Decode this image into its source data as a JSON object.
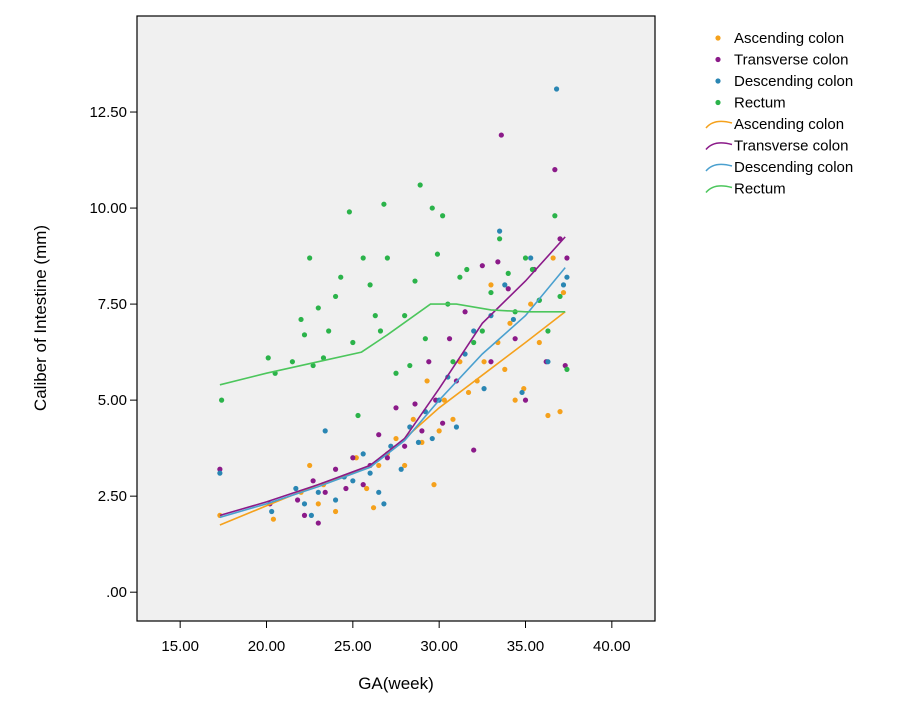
{
  "chart_data": {
    "type": "scatter",
    "xlabel": "GA(week)",
    "ylabel": "Caliber of Intestine (mm)",
    "xlim": [
      12.5,
      42.5
    ],
    "ylim": [
      -0.75,
      15.0
    ],
    "xticks": [
      "15.00",
      "20.00",
      "25.00",
      "30.00",
      "35.00",
      "40.00"
    ],
    "xtick_values": [
      15,
      20,
      25,
      30,
      35,
      40
    ],
    "yticks": [
      ".00",
      "2.50",
      "5.00",
      "7.50",
      "10.00",
      "12.50"
    ],
    "ytick_values": [
      0,
      2.5,
      5,
      7.5,
      10,
      12.5
    ],
    "grid": false,
    "legend_position": "right",
    "plot_background": "#f0f0f0",
    "scatter_series": [
      {
        "name": "Ascending colon",
        "color": "#f5a11c",
        "points": [
          [
            17.3,
            2.0
          ],
          [
            20.4,
            1.9
          ],
          [
            22.0,
            2.6
          ],
          [
            22.5,
            3.3
          ],
          [
            23.0,
            2.3
          ],
          [
            23.3,
            2.8
          ],
          [
            24.0,
            2.1
          ],
          [
            24.5,
            3.0
          ],
          [
            25.2,
            3.5
          ],
          [
            25.8,
            2.7
          ],
          [
            26.2,
            2.2
          ],
          [
            26.5,
            3.3
          ],
          [
            27.0,
            3.6
          ],
          [
            27.5,
            4.0
          ],
          [
            28.0,
            3.3
          ],
          [
            28.5,
            4.5
          ],
          [
            29.0,
            3.9
          ],
          [
            29.3,
            5.5
          ],
          [
            29.7,
            2.8
          ],
          [
            30.0,
            4.2
          ],
          [
            30.3,
            5.0
          ],
          [
            30.8,
            4.5
          ],
          [
            31.2,
            6.0
          ],
          [
            31.7,
            5.2
          ],
          [
            32.2,
            5.5
          ],
          [
            32.6,
            6.0
          ],
          [
            33.0,
            8.0
          ],
          [
            33.4,
            6.5
          ],
          [
            33.8,
            5.8
          ],
          [
            34.1,
            7.0
          ],
          [
            34.4,
            5.0
          ],
          [
            34.9,
            5.3
          ],
          [
            35.3,
            7.5
          ],
          [
            35.8,
            6.5
          ],
          [
            36.3,
            4.6
          ],
          [
            36.6,
            8.7
          ],
          [
            37.0,
            4.7
          ],
          [
            37.2,
            7.8
          ]
        ]
      },
      {
        "name": "Transverse colon",
        "color": "#8b1a89",
        "points": [
          [
            17.3,
            3.2
          ],
          [
            20.2,
            2.3
          ],
          [
            21.8,
            2.4
          ],
          [
            22.2,
            2.0
          ],
          [
            22.7,
            2.9
          ],
          [
            23.0,
            1.8
          ],
          [
            23.4,
            2.6
          ],
          [
            24.0,
            3.2
          ],
          [
            24.6,
            2.7
          ],
          [
            25.0,
            3.5
          ],
          [
            25.6,
            2.8
          ],
          [
            26.0,
            3.3
          ],
          [
            26.5,
            4.1
          ],
          [
            27.0,
            3.5
          ],
          [
            27.5,
            4.8
          ],
          [
            28.0,
            3.8
          ],
          [
            28.6,
            4.9
          ],
          [
            29.0,
            4.2
          ],
          [
            29.4,
            6.0
          ],
          [
            29.8,
            5.0
          ],
          [
            30.2,
            4.4
          ],
          [
            30.6,
            6.6
          ],
          [
            31.0,
            5.5
          ],
          [
            31.5,
            7.3
          ],
          [
            32.0,
            3.7
          ],
          [
            32.5,
            8.5
          ],
          [
            33.0,
            6.0
          ],
          [
            33.4,
            8.6
          ],
          [
            33.6,
            11.9
          ],
          [
            34.0,
            7.9
          ],
          [
            34.4,
            6.6
          ],
          [
            35.0,
            5.0
          ],
          [
            35.5,
            8.4
          ],
          [
            36.2,
            6.0
          ],
          [
            36.7,
            11.0
          ],
          [
            37.0,
            9.2
          ],
          [
            37.3,
            5.9
          ],
          [
            37.4,
            8.7
          ]
        ]
      },
      {
        "name": "Descending colon",
        "color": "#2a86b3",
        "points": [
          [
            17.3,
            3.1
          ],
          [
            20.3,
            2.1
          ],
          [
            21.7,
            2.7
          ],
          [
            22.2,
            2.3
          ],
          [
            22.6,
            2.0
          ],
          [
            23.0,
            2.6
          ],
          [
            23.4,
            4.2
          ],
          [
            24.0,
            2.4
          ],
          [
            24.5,
            3.0
          ],
          [
            25.0,
            2.9
          ],
          [
            25.6,
            3.6
          ],
          [
            26.0,
            3.1
          ],
          [
            26.5,
            2.6
          ],
          [
            26.8,
            2.3
          ],
          [
            27.2,
            3.8
          ],
          [
            27.8,
            3.2
          ],
          [
            28.3,
            4.3
          ],
          [
            28.8,
            3.9
          ],
          [
            29.2,
            4.7
          ],
          [
            29.6,
            4.0
          ],
          [
            30.0,
            5.0
          ],
          [
            30.5,
            5.6
          ],
          [
            31.0,
            4.3
          ],
          [
            31.5,
            6.2
          ],
          [
            32.0,
            6.8
          ],
          [
            32.6,
            5.3
          ],
          [
            33.0,
            7.2
          ],
          [
            33.5,
            9.4
          ],
          [
            33.8,
            8.0
          ],
          [
            34.3,
            7.1
          ],
          [
            34.8,
            5.2
          ],
          [
            35.3,
            8.7
          ],
          [
            35.8,
            7.6
          ],
          [
            36.3,
            6.0
          ],
          [
            36.8,
            13.1
          ],
          [
            37.2,
            8.0
          ],
          [
            37.4,
            8.2
          ]
        ]
      },
      {
        "name": "Rectum",
        "color": "#2bb34a",
        "points": [
          [
            17.4,
            5.0
          ],
          [
            20.1,
            6.1
          ],
          [
            20.5,
            5.7
          ],
          [
            21.5,
            6.0
          ],
          [
            22.0,
            7.1
          ],
          [
            22.2,
            6.7
          ],
          [
            22.5,
            8.7
          ],
          [
            22.7,
            5.9
          ],
          [
            23.0,
            7.4
          ],
          [
            23.3,
            6.1
          ],
          [
            23.6,
            6.8
          ],
          [
            24.0,
            7.7
          ],
          [
            24.3,
            8.2
          ],
          [
            24.8,
            9.9
          ],
          [
            25.0,
            6.5
          ],
          [
            25.3,
            4.6
          ],
          [
            25.6,
            8.7
          ],
          [
            26.0,
            8.0
          ],
          [
            26.3,
            7.2
          ],
          [
            26.6,
            6.8
          ],
          [
            26.8,
            10.1
          ],
          [
            27.0,
            8.7
          ],
          [
            27.5,
            5.7
          ],
          [
            28.0,
            7.2
          ],
          [
            28.3,
            5.9
          ],
          [
            28.6,
            8.1
          ],
          [
            28.9,
            10.6
          ],
          [
            29.2,
            6.6
          ],
          [
            29.6,
            10.0
          ],
          [
            29.9,
            8.8
          ],
          [
            30.2,
            9.8
          ],
          [
            30.5,
            7.5
          ],
          [
            30.8,
            6.0
          ],
          [
            31.2,
            8.2
          ],
          [
            31.6,
            8.4
          ],
          [
            32.0,
            6.5
          ],
          [
            32.5,
            6.8
          ],
          [
            33.0,
            7.8
          ],
          [
            33.5,
            9.2
          ],
          [
            34.0,
            8.3
          ],
          [
            34.4,
            7.3
          ],
          [
            35.0,
            8.7
          ],
          [
            35.4,
            8.4
          ],
          [
            35.8,
            7.6
          ],
          [
            36.3,
            6.8
          ],
          [
            36.7,
            9.8
          ],
          [
            37.0,
            7.7
          ],
          [
            37.4,
            5.8
          ]
        ]
      }
    ],
    "line_series": [
      {
        "name": "Ascending colon",
        "color": "#f5a11c",
        "points": [
          [
            17.3,
            1.75
          ],
          [
            20.0,
            2.25
          ],
          [
            23.0,
            2.8
          ],
          [
            26.0,
            3.25
          ],
          [
            28.0,
            4.0
          ],
          [
            30.0,
            4.8
          ],
          [
            32.5,
            5.65
          ],
          [
            35.0,
            6.5
          ],
          [
            37.3,
            7.3
          ]
        ]
      },
      {
        "name": "Transverse colon",
        "color": "#8b1a89",
        "points": [
          [
            17.3,
            2.0
          ],
          [
            20.0,
            2.35
          ],
          [
            23.0,
            2.8
          ],
          [
            26.0,
            3.3
          ],
          [
            28.0,
            4.0
          ],
          [
            30.0,
            5.3
          ],
          [
            32.5,
            7.0
          ],
          [
            35.0,
            8.1
          ],
          [
            37.3,
            9.25
          ]
        ]
      },
      {
        "name": "Descending colon",
        "color": "#4aa0cf",
        "points": [
          [
            17.3,
            1.95
          ],
          [
            20.0,
            2.3
          ],
          [
            23.0,
            2.75
          ],
          [
            26.0,
            3.25
          ],
          [
            28.0,
            3.95
          ],
          [
            30.0,
            5.0
          ],
          [
            32.5,
            6.2
          ],
          [
            35.0,
            7.2
          ],
          [
            37.3,
            8.45
          ]
        ]
      },
      {
        "name": "Rectum",
        "color": "#4cc65c",
        "points": [
          [
            17.3,
            5.4
          ],
          [
            20.0,
            5.7
          ],
          [
            23.0,
            6.0
          ],
          [
            25.5,
            6.25
          ],
          [
            27.0,
            6.7
          ],
          [
            29.5,
            7.5
          ],
          [
            31.0,
            7.5
          ],
          [
            33.0,
            7.35
          ],
          [
            35.0,
            7.3
          ],
          [
            37.3,
            7.3
          ]
        ]
      }
    ],
    "legend": [
      {
        "label": "Ascending colon",
        "kind": "marker",
        "color": "#f5a11c"
      },
      {
        "label": "Transverse colon",
        "kind": "marker",
        "color": "#8b1a89"
      },
      {
        "label": "Descending colon",
        "kind": "marker",
        "color": "#2a86b3"
      },
      {
        "label": "Rectum",
        "kind": "marker",
        "color": "#2bb34a"
      },
      {
        "label": "Ascending colon",
        "kind": "line",
        "color": "#f5a11c"
      },
      {
        "label": "Transverse colon",
        "kind": "line",
        "color": "#8b1a89"
      },
      {
        "label": "Descending colon",
        "kind": "line",
        "color": "#4aa0cf"
      },
      {
        "label": "Rectum",
        "kind": "line",
        "color": "#4cc65c"
      }
    ]
  }
}
